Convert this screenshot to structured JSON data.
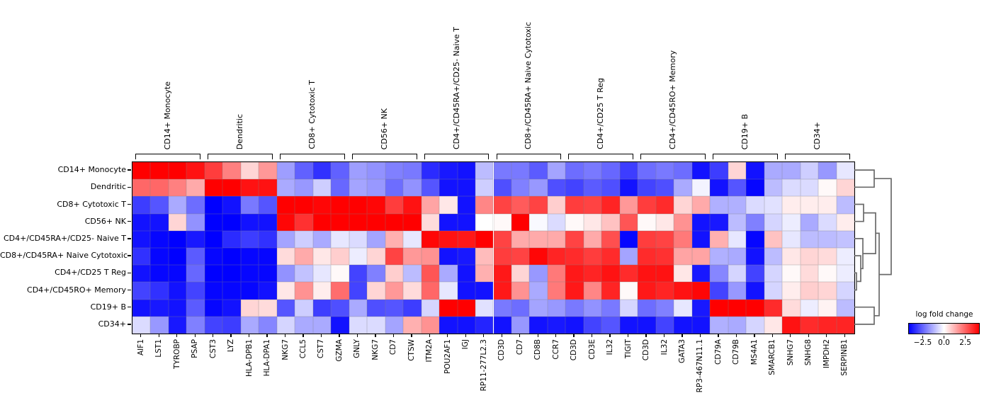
{
  "figure": {
    "background": "#ffffff"
  },
  "chart_data": {
    "type": "heatmap",
    "title": "",
    "rows": [
      "CD14+ Monocyte",
      "Dendritic",
      "CD8+ Cytotoxic T",
      "CD56+ NK",
      "CD4+/CD45RA+/CD25- Naive T",
      "CD8+/CD45RA+ Naive Cytotoxic",
      "CD4+/CD25 T Reg",
      "CD4+/CD45RO+ Memory",
      "CD19+ B",
      "CD34+"
    ],
    "columns": [
      "AIF1",
      "LST1",
      "TYROBP",
      "PSAP",
      "CST3",
      "LYZ",
      "HLA-DPB1",
      "HLA-DPA1",
      "NKG7",
      "CCL5",
      "CST7",
      "GZMA",
      "GNLY",
      "NKG7",
      "CD7",
      "CTSW",
      "ITM2A",
      "POU2AF1",
      "IGJ",
      "RP11-277L2.3",
      "CD3D",
      "CD7",
      "CD8B",
      "CCR7",
      "CD3D",
      "CD3E",
      "IL32",
      "TIGIT",
      "CD3D",
      "IL32",
      "GATA3",
      "RP3-467N11.1",
      "CD79A",
      "CD79B",
      "MS4A1",
      "SMARCB1",
      "SNHG7",
      "SNHG8",
      "IMPDH2",
      "SERPINB1"
    ],
    "column_groups": [
      {
        "label": "CD14+ Monocyte",
        "start": 0,
        "end": 3
      },
      {
        "label": "Dendritic",
        "start": 4,
        "end": 7
      },
      {
        "label": "CD8+ Cytotoxic T",
        "start": 8,
        "end": 11
      },
      {
        "label": "CD56+ NK",
        "start": 12,
        "end": 15
      },
      {
        "label": "CD4+/CD45RA+/CD25- Naive T",
        "start": 16,
        "end": 19
      },
      {
        "label": "CD8+/CD45RA+ Naive Cytotoxic",
        "start": 20,
        "end": 23
      },
      {
        "label": "CD4+/CD25 T Reg",
        "start": 24,
        "end": 27
      },
      {
        "label": "CD4+/CD45RO+ Memory",
        "start": 28,
        "end": 31
      },
      {
        "label": "CD19+ B",
        "start": 32,
        "end": 35
      },
      {
        "label": "CD34+",
        "start": 36,
        "end": 39
      }
    ],
    "values": [
      [
        4.2,
        4.2,
        4.2,
        3.9,
        3.2,
        2.1,
        0.7,
        1.7,
        -1.6,
        -2.6,
        -3.4,
        -2.6,
        -1.6,
        -1.8,
        -2.1,
        -2.2,
        -3.5,
        -3.8,
        -3.9,
        -1.1,
        -2.2,
        -2.2,
        -2.7,
        -1.5,
        -2.4,
        -2.2,
        -2.5,
        -3.2,
        -2.4,
        -2.2,
        -2.4,
        -3.9,
        -3.2,
        0.7,
        -3.9,
        -1.4,
        -1.4,
        -0.8,
        -1.7,
        -0.4
      ],
      [
        2.5,
        2.5,
        2.1,
        1.4,
        4.2,
        4.2,
        3.9,
        3.9,
        -1.4,
        -1.7,
        -0.8,
        -2.5,
        -1.5,
        -1.7,
        -2.4,
        -1.8,
        -2.8,
        -3.9,
        -3.9,
        -0.8,
        -2.9,
        -2.1,
        -1.7,
        -2.9,
        -3.1,
        -2.7,
        -2.9,
        -3.9,
        -3.1,
        -2.9,
        -1.4,
        -0.2,
        -3.9,
        -2.8,
        -4.1,
        -1.1,
        -0.6,
        -0.6,
        0.1,
        0.7
      ],
      [
        -3.2,
        -2.8,
        -1.4,
        -2.4,
        -4.2,
        -3.9,
        -2.2,
        -2.8,
        4.2,
        4.2,
        4.1,
        4.2,
        4.2,
        4.1,
        3.2,
        3.9,
        1.5,
        0.4,
        -3.9,
        2.0,
        3.1,
        2.7,
        3.1,
        0.8,
        3.2,
        3.1,
        3.6,
        1.7,
        3.2,
        3.5,
        0.7,
        1.4,
        -1.3,
        -1.3,
        -0.6,
        -0.5,
        0.3,
        0.3,
        0.3,
        -1.1
      ],
      [
        -3.9,
        -3.9,
        0.7,
        -1.8,
        -4.2,
        -4.2,
        -3.9,
        -3.9,
        4.1,
        3.4,
        4.2,
        4.2,
        4.2,
        4.2,
        4.2,
        4.2,
        0.6,
        -3.9,
        -3.9,
        0.0,
        0.1,
        4.2,
        -0.1,
        -0.6,
        0.1,
        0.4,
        1.0,
        2.8,
        0.1,
        0.4,
        1.8,
        -3.9,
        -3.8,
        -1.1,
        -2.1,
        -0.7,
        -0.3,
        -1.4,
        -0.6,
        0.3
      ],
      [
        -3.9,
        -4.1,
        -4.2,
        -3.8,
        -4.2,
        -3.5,
        -3.2,
        -3.4,
        -1.5,
        -0.8,
        -1.4,
        -0.4,
        -0.6,
        -1.5,
        1.3,
        -0.4,
        4.1,
        3.9,
        3.8,
        4.2,
        3.1,
        1.4,
        1.4,
        1.4,
        3.1,
        1.4,
        2.9,
        -4.1,
        3.2,
        3.1,
        2.2,
        -3.9,
        1.3,
        -0.4,
        -4.1,
        1.0,
        -0.4,
        -1.1,
        -1.1,
        -1.0
      ],
      [
        -3.4,
        -4.1,
        -4.2,
        -2.7,
        -4.1,
        -4.2,
        -4.1,
        -4.1,
        0.6,
        1.4,
        0.4,
        0.8,
        -0.3,
        0.7,
        3.1,
        1.7,
        1.8,
        -3.9,
        -3.8,
        1.1,
        3.2,
        3.1,
        4.1,
        3.6,
        3.5,
        3.2,
        3.5,
        -1.5,
        3.5,
        3.4,
        1.5,
        1.5,
        -1.3,
        -1.4,
        -3.9,
        -1.1,
        0.4,
        0.7,
        0.6,
        -0.3
      ],
      [
        -3.9,
        -4.1,
        -4.1,
        -2.5,
        -4.2,
        -4.2,
        -4.1,
        -4.1,
        -1.8,
        -1.0,
        -0.4,
        0.1,
        -3.1,
        -2.1,
        0.8,
        -1.1,
        2.8,
        -1.4,
        -3.9,
        1.3,
        3.8,
        0.7,
        -1.7,
        2.2,
        3.8,
        3.6,
        3.9,
        3.5,
        3.9,
        3.9,
        0.4,
        -3.8,
        -2.0,
        -0.7,
        -3.1,
        -0.7,
        0.1,
        0.6,
        0.1,
        -0.3
      ],
      [
        -3.1,
        -3.4,
        -3.9,
        -3.1,
        -4.1,
        -4.1,
        -4.1,
        -3.9,
        0.4,
        1.8,
        0.3,
        2.4,
        -3.1,
        0.7,
        1.7,
        0.6,
        2.5,
        -0.4,
        -3.9,
        -3.9,
        3.8,
        1.8,
        -1.4,
        2.2,
        3.8,
        2.0,
        3.6,
        0.1,
        3.8,
        3.6,
        3.9,
        4.1,
        -3.1,
        -1.7,
        -3.9,
        -0.7,
        0.3,
        0.8,
        0.7,
        -0.7
      ],
      [
        -3.9,
        -3.8,
        -3.9,
        -2.7,
        -4.1,
        -3.9,
        0.7,
        0.6,
        -2.8,
        -0.8,
        -3.2,
        -2.9,
        -1.4,
        -2.9,
        -2.8,
        -3.2,
        -0.7,
        4.2,
        4.2,
        -0.5,
        -2.2,
        -2.4,
        -1.5,
        -1.7,
        -2.2,
        -1.8,
        -2.2,
        -0.7,
        -2.4,
        -2.1,
        -0.4,
        -3.8,
        4.2,
        4.2,
        4.2,
        3.5,
        0.6,
        -0.3,
        0.2,
        -1.1
      ],
      [
        -0.6,
        -1.7,
        -3.8,
        -2.1,
        -3.1,
        -3.2,
        -1.4,
        -2.0,
        -0.7,
        -1.4,
        -1.4,
        -3.9,
        -0.6,
        -0.6,
        -1.5,
        1.3,
        1.8,
        -3.9,
        -3.9,
        -3.6,
        -3.9,
        -1.7,
        -3.9,
        -3.8,
        -3.9,
        -3.1,
        -2.8,
        -3.9,
        -3.9,
        -3.1,
        -3.9,
        -3.9,
        -1.3,
        -1.4,
        -0.7,
        0.4,
        3.9,
        3.5,
        3.6,
        3.6
      ]
    ],
    "colormap": {
      "name": "bwr",
      "negative": "#0000ff",
      "mid": "#ffffff",
      "positive": "#ff0000",
      "vmin": -4.2,
      "vmax": 4.2
    },
    "colorbar": {
      "title": "log fold change",
      "ticks": [
        -2.5,
        0.0,
        2.5
      ],
      "tick_labels": [
        "−2.5",
        "0.0",
        "2.5"
      ]
    },
    "row_dendrogram": {
      "color": "#6a6a6a",
      "paths": [
        "M0,12.1 H28 V36.3 H0",
        "M0,60.5 H13 V84.7 H0",
        "M0,157.3 H3 V181.5 H0",
        "M0,133.1 H9 V169.4 H3",
        "M0,108.9 H12 V151.3 H9",
        "M13,72.6 H30 V130.1 H12",
        "M0,205.7 H28 V229.9 H0",
        "M30,101.4 H35 V217.8 H28",
        "M28,24.2 H52 V159.6 H35"
      ]
    }
  }
}
